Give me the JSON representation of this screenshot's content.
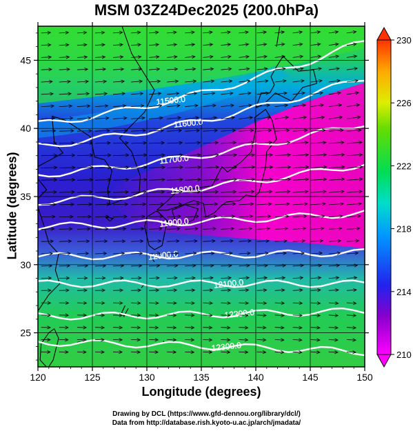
{
  "title": "MSM 03Z24Dec2025 (200.0hPa)",
  "xlabel": "Longitude (degrees)",
  "ylabel": "Latitude  (degrees)",
  "credits": [
    "Drawing by DCL (https://www.gfd-dennou.org/library/dcl/)",
    "Data from http://database.rish.kyoto-u.ac.jp/arch/jmadata/"
  ],
  "map": {
    "lon_range": [
      120,
      150
    ],
    "lat_range": [
      22.5,
      47.5
    ],
    "lon_ticks": [
      "120",
      "125",
      "130",
      "135",
      "140",
      "145",
      "150"
    ],
    "lat_ticks": [
      "25",
      "30",
      "35",
      "40",
      "45"
    ],
    "shading_variable": "temperature",
    "colorbar": {
      "min": 210,
      "max": 230,
      "tick_labels": [
        "230",
        "226",
        "222",
        "218",
        "214",
        "210"
      ],
      "colors": [
        "#ff00ff",
        "#6600cc",
        "#2222ee",
        "#00aaff",
        "#00eecc",
        "#22dd44",
        "#ccee00",
        "#ffaa00",
        "#ff4400"
      ]
    },
    "contour_interval": 100,
    "contours": [
      {
        "label": "11500.0",
        "lat_west": 40.3,
        "lat_east": 46.4,
        "label_lon": 132.2
      },
      {
        "label": "11600.0",
        "lat_west": 38.7,
        "lat_east": 43.7,
        "label_lon": 133.8
      },
      {
        "label": "11700.0",
        "lat_west": 36.6,
        "lat_east": 40.4,
        "label_lon": 132.5
      },
      {
        "label": "11800.0",
        "lat_west": 34.6,
        "lat_east": 37.4,
        "label_lon": 133.5
      },
      {
        "label": "11900.0",
        "lat_west": 32.8,
        "lat_east": 33.8,
        "label_lon": 132.5
      },
      {
        "label": "12000.0",
        "lat_west": 30.6,
        "lat_east": 30.9,
        "label_lon": 131.5
      },
      {
        "label": "12100.0",
        "lat_west": 28.6,
        "lat_east": 28.6,
        "label_lon": 137.5
      },
      {
        "label": "12200.0",
        "lat_west": 26.2,
        "lat_east": 26.6,
        "label_lon": 138.5
      },
      {
        "label": "12300.0",
        "lat_west": 24.3,
        "lat_east": 23.6,
        "label_lon": 137.3
      }
    ],
    "wind_region_name": "wind-vectors"
  }
}
